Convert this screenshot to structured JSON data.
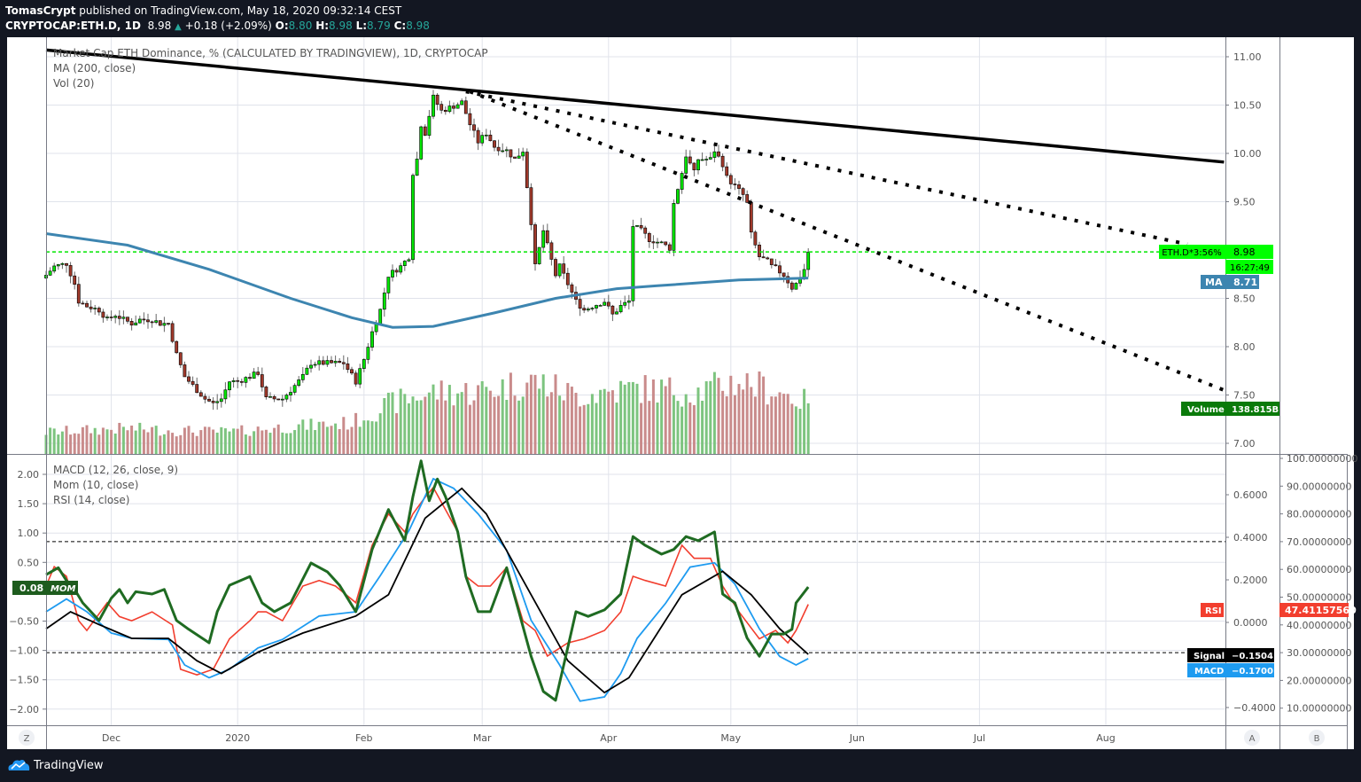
{
  "header": {
    "author": "TomasCrypt",
    "published": "published on TradingView.com, May 18, 2020 09:32:14 CEST",
    "symbol": "CRYPTOCAP:ETH.D, 1D",
    "last": "8.98",
    "change": "+0.18 (+2.09%)",
    "o_label": "O:",
    "o": "8.80",
    "h_label": "H:",
    "h": "8.98",
    "l_label": "L:",
    "l": "8.79",
    "c_label": "C:",
    "c": "8.98"
  },
  "legend": {
    "main": "Market Cap ETH Dominance, % (CALCULATED BY TRADINGVIEW), 1D, CRYPTOCAP",
    "ma": "MA (200, close)",
    "vol": "Vol (20)",
    "macd": "MACD (12, 26, close, 9)",
    "mom": "Mom (10, close)",
    "rsi": "RSI (14, close)"
  },
  "labels": {
    "price_tag": "ETH.D*3:56%",
    "price_value": "8.98",
    "countdown": "16:27:49",
    "ma_tag": "MA",
    "ma_value": "8.71",
    "volume_tag": "Volume",
    "volume_value": "138.815B",
    "mom_value": "0.08",
    "mom_tag": "MOM",
    "rsi_tag": "RSI",
    "rsi_value": "47.41157560",
    "signal_tag": "Signal",
    "signal_value": "−0.1504",
    "macd_tag": "MACD",
    "macd_value": "−0.1700"
  },
  "axis_buttons": {
    "z": "Z",
    "a": "A",
    "b": "B"
  },
  "footer": {
    "brand": "TradingView"
  },
  "colors": {
    "up": "#00e600",
    "down": "#a0392b",
    "ma": "#3d85b0",
    "mom": "#1f6b22",
    "rsi": "#f23e2e",
    "macd": "#1e9bf0",
    "signal": "#000000",
    "price_line": "#00e600"
  },
  "chart_data": {
    "type": "candlestick",
    "start_date": "2019-11-15",
    "price_axis": {
      "ticks": [
        "11.00",
        "10.50",
        "10.00",
        "9.50",
        "8.50",
        "8.00",
        "7.50",
        "7.00"
      ],
      "tick_values": [
        11,
        10.5,
        10,
        9.5,
        8.5,
        8,
        7.5,
        7
      ],
      "range": [
        6.9,
        11.2
      ]
    },
    "time_axis": {
      "ticks": [
        "Dec",
        "2020",
        "Feb",
        "Mar",
        "Apr",
        "May",
        "Jun",
        "Jul",
        "Aug"
      ],
      "tick_days": [
        16,
        47,
        78,
        107,
        138,
        168,
        199,
        229,
        260
      ]
    },
    "close_anchors": [
      [
        0,
        8.74
      ],
      [
        2,
        8.83
      ],
      [
        5,
        8.86
      ],
      [
        7,
        8.65
      ],
      [
        8,
        8.47
      ],
      [
        10,
        8.42
      ],
      [
        13,
        8.38
      ],
      [
        15,
        8.28
      ],
      [
        17,
        8.33
      ],
      [
        19,
        8.28
      ],
      [
        21,
        8.24
      ],
      [
        23,
        8.28
      ],
      [
        26,
        8.28
      ],
      [
        28,
        8.24
      ],
      [
        30,
        8.24
      ],
      [
        32,
        7.92
      ],
      [
        34,
        7.69
      ],
      [
        37,
        7.55
      ],
      [
        39,
        7.46
      ],
      [
        41,
        7.41
      ],
      [
        43,
        7.46
      ],
      [
        45,
        7.64
      ],
      [
        47,
        7.64
      ],
      [
        50,
        7.69
      ],
      [
        52,
        7.73
      ],
      [
        54,
        7.46
      ],
      [
        56,
        7.46
      ],
      [
        58,
        7.46
      ],
      [
        60,
        7.55
      ],
      [
        63,
        7.69
      ],
      [
        65,
        7.83
      ],
      [
        67,
        7.83
      ],
      [
        69,
        7.83
      ],
      [
        71,
        7.83
      ],
      [
        73,
        7.83
      ],
      [
        76,
        7.64
      ],
      [
        78,
        7.87
      ],
      [
        80,
        8.15
      ],
      [
        82,
        8.38
      ],
      [
        84,
        8.74
      ],
      [
        87,
        8.83
      ],
      [
        89,
        8.93
      ],
      [
        90,
        9.8
      ],
      [
        91,
        9.94
      ],
      [
        92,
        10.3
      ],
      [
        93,
        10.21
      ],
      [
        95,
        10.58
      ],
      [
        97,
        10.44
      ],
      [
        100,
        10.49
      ],
      [
        102,
        10.53
      ],
      [
        104,
        10.3
      ],
      [
        106,
        10.12
      ],
      [
        108,
        10.21
      ],
      [
        110,
        10.07
      ],
      [
        113,
        10.03
      ],
      [
        115,
        9.94
      ],
      [
        117,
        10.03
      ],
      [
        119,
        9.29
      ],
      [
        120,
        8.83
      ],
      [
        122,
        9.2
      ],
      [
        125,
        8.74
      ],
      [
        126,
        8.83
      ],
      [
        128,
        8.65
      ],
      [
        130,
        8.47
      ],
      [
        132,
        8.38
      ],
      [
        134,
        8.42
      ],
      [
        137,
        8.47
      ],
      [
        139,
        8.33
      ],
      [
        141,
        8.42
      ],
      [
        143,
        8.47
      ],
      [
        144,
        9.25
      ],
      [
        146,
        9.2
      ],
      [
        148,
        9.11
      ],
      [
        151,
        9.07
      ],
      [
        153,
        9.02
      ],
      [
        154,
        9.48
      ],
      [
        156,
        9.8
      ],
      [
        157,
        9.98
      ],
      [
        159,
        9.8
      ],
      [
        160,
        9.94
      ],
      [
        163,
        9.94
      ],
      [
        164,
        10.03
      ],
      [
        166,
        9.89
      ],
      [
        167,
        9.75
      ],
      [
        169,
        9.66
      ],
      [
        171,
        9.57
      ],
      [
        172,
        9.48
      ],
      [
        173,
        9.16
      ],
      [
        175,
        8.93
      ],
      [
        177,
        8.88
      ],
      [
        178,
        8.83
      ],
      [
        179,
        8.81
      ],
      [
        181,
        8.74
      ],
      [
        183,
        8.61
      ],
      [
        184,
        8.65
      ],
      [
        186,
        8.8
      ],
      [
        187,
        8.98
      ]
    ],
    "ma200_anchors": [
      [
        0,
        9.17
      ],
      [
        20,
        9.05
      ],
      [
        40,
        8.8
      ],
      [
        60,
        8.5
      ],
      [
        75,
        8.3
      ],
      [
        85,
        8.2
      ],
      [
        95,
        8.21
      ],
      [
        110,
        8.35
      ],
      [
        125,
        8.5
      ],
      [
        140,
        8.6
      ],
      [
        150,
        8.63
      ],
      [
        170,
        8.69
      ],
      [
        187,
        8.71
      ]
    ],
    "volume_anchors_B": [
      [
        0,
        60
      ],
      [
        20,
        70
      ],
      [
        30,
        65
      ],
      [
        45,
        60
      ],
      [
        60,
        75
      ],
      [
        75,
        85
      ],
      [
        85,
        140
      ],
      [
        95,
        170
      ],
      [
        105,
        170
      ],
      [
        120,
        200
      ],
      [
        130,
        160
      ],
      [
        145,
        180
      ],
      [
        160,
        170
      ],
      [
        170,
        200
      ],
      [
        180,
        170
      ],
      [
        187,
        138.815
      ]
    ],
    "current_price": 8.98,
    "trendlines": [
      {
        "style": "solid",
        "from": [
          0,
          11.07
        ],
        "to": [
          289,
          9.91
        ]
      },
      {
        "style": "dotted",
        "from": [
          103,
          10.64
        ],
        "to": [
          280,
          9.06
        ]
      },
      {
        "style": "dotted",
        "from": [
          104,
          10.64
        ],
        "to": [
          289,
          7.55
        ]
      }
    ],
    "indicators": {
      "mom_axis": {
        "ticks": [
          "2.00",
          "1.50",
          "1.00",
          "0.50",
          "−0.50",
          "−1.00",
          "−1.50",
          "−2.00"
        ],
        "tick_values": [
          2,
          1.5,
          1,
          0.5,
          -0.5,
          -1,
          -1.5,
          -2
        ]
      },
      "macd_axis": {
        "ticks": [
          "0.6000",
          "0.4000",
          "0.2000",
          "0.0000",
          "−0.4000"
        ],
        "tick_values": [
          0.6,
          0.4,
          0.2,
          0,
          -0.4
        ]
      },
      "rsi_axis": {
        "ticks": [
          "100.00000000",
          "90.00000000",
          "80.00000000",
          "70.00000000",
          "60.00000000",
          "50.00000000",
          "40.00000000",
          "30.00000000",
          "20.00000000",
          "10.00000000"
        ],
        "tick_values": [
          100,
          90,
          80,
          70,
          60,
          50,
          40,
          30,
          20,
          10
        ],
        "bands": [
          70,
          30
        ]
      },
      "macd": [
        [
          0,
          0.05
        ],
        [
          5,
          0.11
        ],
        [
          10,
          0.05
        ],
        [
          16,
          -0.05
        ],
        [
          21,
          -0.075
        ],
        [
          30,
          -0.08
        ],
        [
          34,
          -0.2
        ],
        [
          40,
          -0.26
        ],
        [
          45,
          -0.22
        ],
        [
          52,
          -0.12
        ],
        [
          58,
          -0.08
        ],
        [
          67,
          0.03
        ],
        [
          76,
          0.05
        ],
        [
          82,
          0.22
        ],
        [
          89,
          0.43
        ],
        [
          95,
          0.675
        ],
        [
          100,
          0.63
        ],
        [
          106,
          0.51
        ],
        [
          113,
          0.34
        ],
        [
          119,
          0.01
        ],
        [
          126,
          -0.2
        ],
        [
          131,
          -0.37
        ],
        [
          137,
          -0.35
        ],
        [
          141,
          -0.24
        ],
        [
          145,
          -0.075
        ],
        [
          152,
          0.09
        ],
        [
          158,
          0.26
        ],
        [
          164,
          0.28
        ],
        [
          169,
          0.18
        ],
        [
          175,
          -0.03
        ],
        [
          180,
          -0.16
        ],
        [
          184,
          -0.2
        ],
        [
          187,
          -0.17
        ]
      ],
      "signal": [
        [
          0,
          -0.03
        ],
        [
          6,
          0.05
        ],
        [
          13,
          -0.01
        ],
        [
          21,
          -0.075
        ],
        [
          30,
          -0.075
        ],
        [
          37,
          -0.18
        ],
        [
          43,
          -0.24
        ],
        [
          52,
          -0.14
        ],
        [
          63,
          -0.05
        ],
        [
          76,
          0.03
        ],
        [
          84,
          0.13
        ],
        [
          93,
          0.49
        ],
        [
          102,
          0.63
        ],
        [
          108,
          0.51
        ],
        [
          119,
          0.13
        ],
        [
          128,
          -0.18
        ],
        [
          137,
          -0.33
        ],
        [
          143,
          -0.26
        ],
        [
          150,
          -0.05
        ],
        [
          156,
          0.13
        ],
        [
          166,
          0.24
        ],
        [
          173,
          0.13
        ],
        [
          180,
          -0.03
        ],
        [
          187,
          -0.15
        ]
      ],
      "mom": [
        [
          0,
          0.29
        ],
        [
          3,
          0.41
        ],
        [
          5,
          0.19
        ],
        [
          7,
          0.04
        ],
        [
          9,
          -0.19
        ],
        [
          13,
          -0.49
        ],
        [
          16,
          -0.11
        ],
        [
          18,
          0.04
        ],
        [
          20,
          -0.19
        ],
        [
          22,
          0.0
        ],
        [
          26,
          -0.04
        ],
        [
          29,
          0.04
        ],
        [
          32,
          -0.49
        ],
        [
          35,
          -0.64
        ],
        [
          40,
          -0.87
        ],
        [
          42,
          -0.34
        ],
        [
          45,
          0.11
        ],
        [
          50,
          0.26
        ],
        [
          53,
          -0.19
        ],
        [
          56,
          -0.34
        ],
        [
          60,
          -0.19
        ],
        [
          65,
          0.49
        ],
        [
          69,
          0.34
        ],
        [
          72,
          0.11
        ],
        [
          76,
          -0.34
        ],
        [
          80,
          0.72
        ],
        [
          84,
          1.4
        ],
        [
          88,
          0.87
        ],
        [
          90,
          1.62
        ],
        [
          92,
          2.23
        ],
        [
          94,
          1.55
        ],
        [
          96,
          1.92
        ],
        [
          98,
          1.62
        ],
        [
          101,
          1.02
        ],
        [
          103,
          0.26
        ],
        [
          106,
          -0.34
        ],
        [
          109,
          -0.34
        ],
        [
          113,
          0.41
        ],
        [
          116,
          -0.34
        ],
        [
          119,
          -1.1
        ],
        [
          122,
          -1.7
        ],
        [
          125,
          -1.85
        ],
        [
          128,
          -0.95
        ],
        [
          130,
          -0.34
        ],
        [
          133,
          -0.42
        ],
        [
          137,
          -0.31
        ],
        [
          141,
          -0.04
        ],
        [
          144,
          0.94
        ],
        [
          147,
          0.79
        ],
        [
          151,
          0.64
        ],
        [
          154,
          0.72
        ],
        [
          157,
          0.94
        ],
        [
          160,
          0.87
        ],
        [
          164,
          1.02
        ],
        [
          166,
          -0.04
        ],
        [
          169,
          -0.19
        ],
        [
          172,
          -0.79
        ],
        [
          175,
          -1.1
        ],
        [
          178,
          -0.72
        ],
        [
          181,
          -0.72
        ],
        [
          183,
          -0.64
        ],
        [
          184,
          -0.19
        ],
        [
          187,
          0.08
        ]
      ],
      "rsi": [
        [
          0,
          54
        ],
        [
          2,
          61
        ],
        [
          5,
          57.5
        ],
        [
          8,
          41.5
        ],
        [
          10,
          38
        ],
        [
          15,
          48
        ],
        [
          18,
          43
        ],
        [
          21,
          41.5
        ],
        [
          26,
          44.7
        ],
        [
          31,
          40
        ],
        [
          33,
          24
        ],
        [
          37,
          22
        ],
        [
          41,
          24
        ],
        [
          45,
          35
        ],
        [
          50,
          41.5
        ],
        [
          52,
          44.7
        ],
        [
          54,
          44.7
        ],
        [
          58,
          41.5
        ],
        [
          63,
          54
        ],
        [
          67,
          56
        ],
        [
          71,
          54
        ],
        [
          76,
          48
        ],
        [
          80,
          68.7
        ],
        [
          84,
          80
        ],
        [
          88,
          73.5
        ],
        [
          90,
          80
        ],
        [
          93,
          86
        ],
        [
          95,
          89.5
        ],
        [
          98,
          81.5
        ],
        [
          101,
          73.5
        ],
        [
          103,
          57.5
        ],
        [
          106,
          54
        ],
        [
          109,
          54
        ],
        [
          113,
          60.7
        ],
        [
          117,
          41.5
        ],
        [
          120,
          38
        ],
        [
          123,
          28.8
        ],
        [
          128,
          33.5
        ],
        [
          132,
          35
        ],
        [
          137,
          38
        ],
        [
          141,
          44.7
        ],
        [
          144,
          57.5
        ],
        [
          147,
          56
        ],
        [
          152,
          54
        ],
        [
          156,
          68.7
        ],
        [
          159,
          64
        ],
        [
          163,
          64
        ],
        [
          166,
          54
        ],
        [
          170,
          44.7
        ],
        [
          175,
          35
        ],
        [
          179,
          38
        ],
        [
          182,
          33.5
        ],
        [
          184,
          38
        ],
        [
          187,
          47.41
        ]
      ]
    }
  }
}
